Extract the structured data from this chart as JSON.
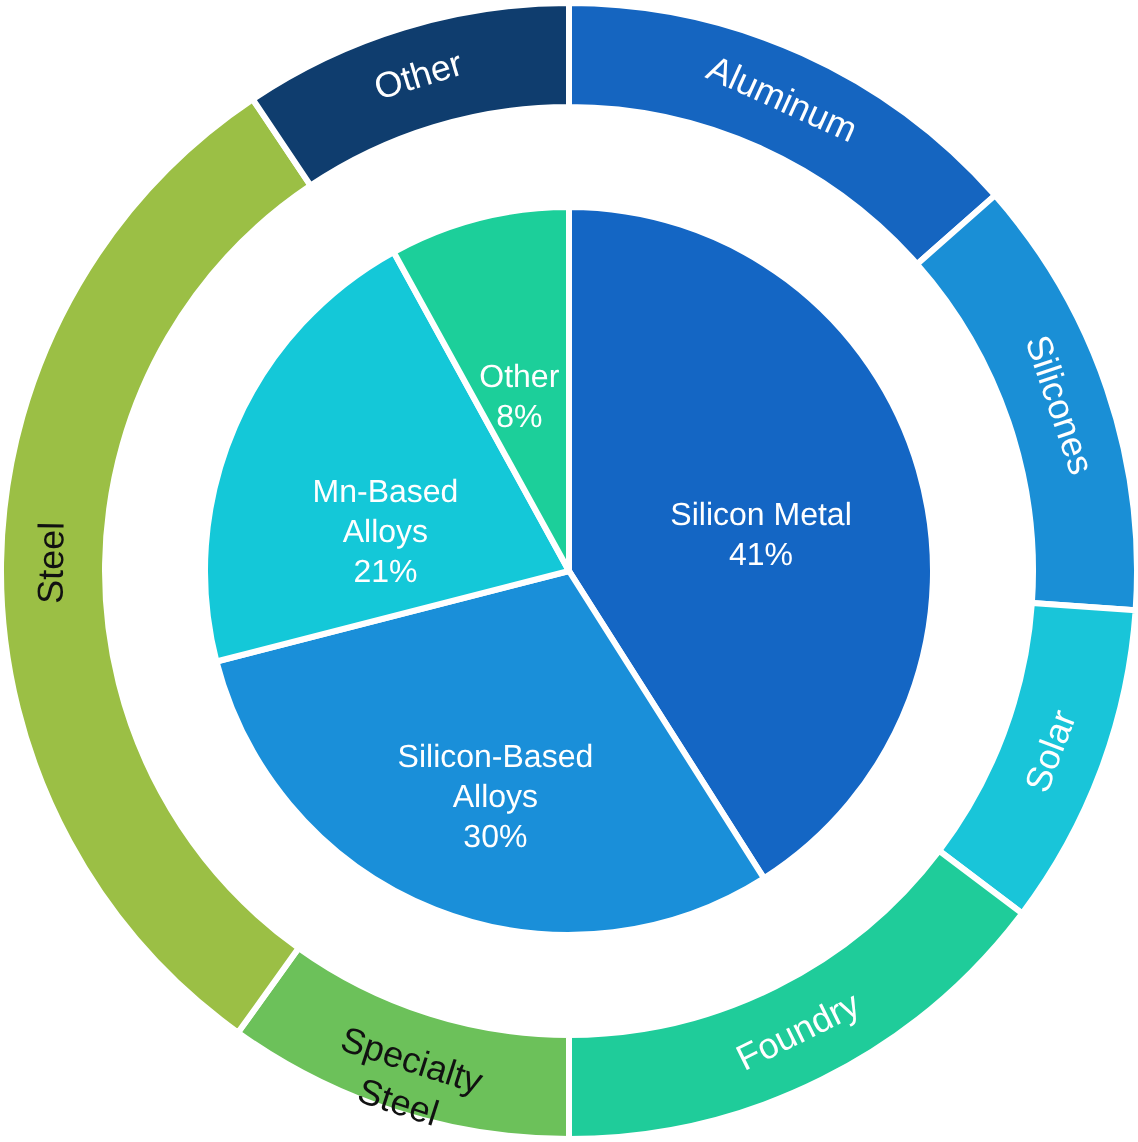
{
  "chart_data": [
    {
      "type": "pie",
      "categories": [
        "Silicon Metal",
        "Silicon-Based Alloys",
        "Mn-Based Alloys",
        "Other"
      ],
      "values": [
        41,
        30,
        21,
        8
      ],
      "value_labels": [
        "41%",
        "30%",
        "21%",
        "8%"
      ],
      "colors": [
        "#1466c4",
        "#1a8fd9",
        "#14c8d8",
        "#1ccf9a"
      ]
    },
    {
      "type": "donut",
      "categories": [
        "Aluminum",
        "Silicones",
        "Solar",
        "Foundry",
        "Specialty Steel",
        "Steel",
        "Other"
      ],
      "values": [
        13.5,
        12.6,
        9.2,
        14.7,
        9.9,
        30.7,
        9.4
      ],
      "colors": [
        "#1565c0",
        "#1a8fd6",
        "#19c5d9",
        "#1fcc9a",
        "#6cc15a",
        "#9bbf45",
        "#0f3d6e"
      ]
    }
  ]
}
